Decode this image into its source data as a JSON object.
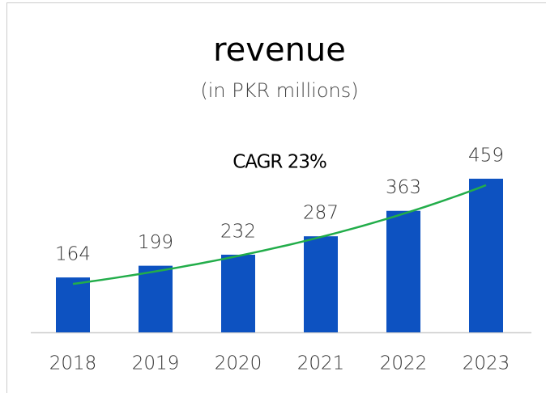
{
  "chart_data": {
    "type": "bar",
    "title": "revenue",
    "subtitle": "(in PKR millions)",
    "annotation": "CAGR 23%",
    "categories": [
      "2018",
      "2019",
      "2020",
      "2021",
      "2022",
      "2023"
    ],
    "values": [
      164,
      199,
      232,
      287,
      363,
      459
    ],
    "color": "#0d52c1",
    "trend_color": "#22ad4a"
  }
}
